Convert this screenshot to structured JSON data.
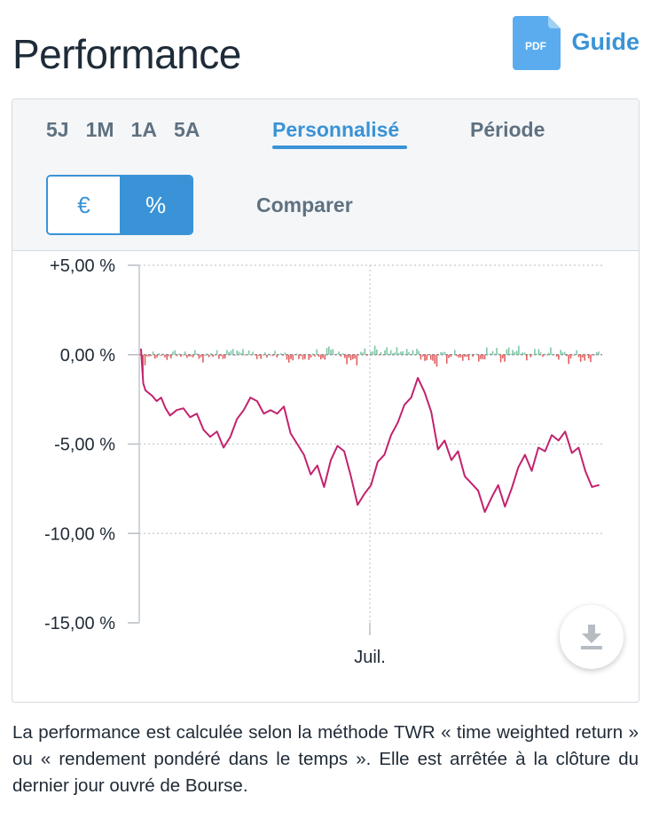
{
  "header": {
    "title": "Performance",
    "guide_label": "Guide",
    "pdf_badge": "PDF"
  },
  "tabs": {
    "periods": [
      "5J",
      "1M",
      "1A",
      "5A"
    ],
    "custom": "Personnalisé",
    "period": "Période",
    "active": "Personnalisé"
  },
  "unit_toggle": {
    "euro": "€",
    "percent": "%",
    "selected": "%"
  },
  "compare_label": "Comparer",
  "chart_data": {
    "type": "line",
    "y_ticks": [
      "+5,00 %",
      "0,00 %",
      "-5,00 %",
      "-10,00 %",
      "-15,00 %"
    ],
    "ylim": [
      -15,
      5
    ],
    "x_tick": "Juil.",
    "grid": true,
    "series": [
      {
        "color": "#c2226e",
        "x": [
          0,
          1,
          2,
          3,
          5,
          7,
          9,
          11,
          13,
          16,
          19,
          22,
          25,
          28,
          31,
          34,
          37,
          40,
          43,
          46,
          49,
          52,
          55,
          58,
          61,
          64,
          67,
          70,
          73,
          76,
          79,
          82,
          85,
          88,
          91,
          94,
          97,
          100,
          103,
          106,
          109,
          112,
          115,
          118,
          121,
          124,
          127,
          130,
          133,
          136,
          139,
          142,
          145,
          148,
          151,
          154,
          157,
          160,
          163,
          166,
          169,
          172,
          175,
          178,
          181,
          184,
          187,
          190,
          193,
          196,
          199,
          202,
          205
        ],
        "values": [
          0.3,
          -1.6,
          -2.0,
          -2.1,
          -2.3,
          -2.6,
          -2.4,
          -3.0,
          -3.4,
          -3.1,
          -3.0,
          -3.5,
          -3.3,
          -4.2,
          -4.6,
          -4.3,
          -5.2,
          -4.6,
          -3.6,
          -3.1,
          -2.4,
          -2.6,
          -3.3,
          -3.1,
          -3.3,
          -2.9,
          -4.4,
          -5.0,
          -5.6,
          -6.7,
          -6.2,
          -7.4,
          -5.9,
          -5.1,
          -5.4,
          -6.8,
          -8.4,
          -7.8,
          -7.3,
          -6.0,
          -5.6,
          -4.5,
          -3.8,
          -2.8,
          -2.4,
          -1.3,
          -2.1,
          -3.2,
          -5.3,
          -4.8,
          -5.9,
          -5.4,
          -6.8,
          -7.2,
          -7.6,
          -8.8,
          -8.0,
          -7.3,
          -8.5,
          -7.5,
          -6.3,
          -5.6,
          -6.5,
          -5.2,
          -5.4,
          -4.5,
          -4.8,
          -4.3,
          -5.5,
          -5.2,
          -6.5,
          -7.4,
          -7.3
        ]
      }
    ]
  },
  "footnote": "La performance est calculée selon la méthode TWR « time weighted return » ou « rendement pondéré dans le temps ». Elle est arrêtée à la clôture du dernier jour ouvré de Bourse."
}
